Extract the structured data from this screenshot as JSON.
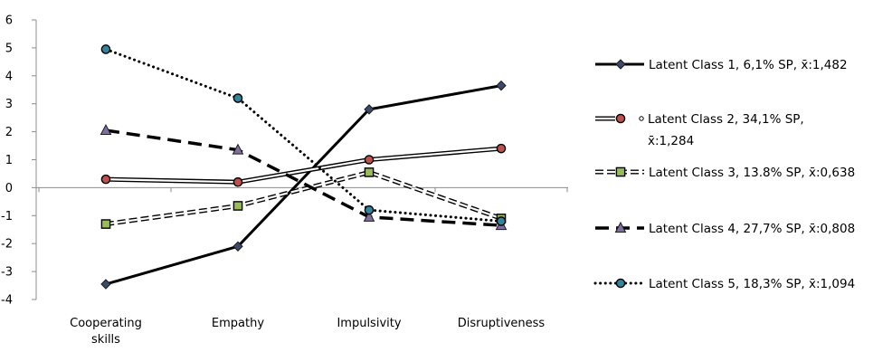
{
  "chart_data": {
    "type": "line",
    "title": "",
    "xlabel": "",
    "ylabel": "",
    "categories": [
      "Cooperating skills",
      "Empathy",
      "Impulsivity",
      "Disruptiveness"
    ],
    "category_lines": [
      [
        "Cooperating",
        "skills"
      ],
      [
        "Empathy"
      ],
      [
        "Impulsivity"
      ],
      [
        "Disruptiveness"
      ]
    ],
    "ylim": [
      -4,
      6
    ],
    "yticks": [
      -4,
      -3,
      -2,
      -1,
      0,
      1,
      2,
      3,
      4,
      5,
      6
    ],
    "grid": false,
    "legend_position": "right",
    "series": [
      {
        "name": "Latent Class 1, 6,1% SP, x̄:1,482",
        "name_lines": [
          "Latent Class 1, 6,1% SP, x̄:1,482"
        ],
        "values": [
          -3.45,
          -2.1,
          2.8,
          3.65
        ],
        "line_style": "solid",
        "marker": "diamond",
        "color": "#000000",
        "marker_color": "#3b4a6b"
      },
      {
        "name": "Latent Class 2, 34,1% SP, x̄:1,284",
        "name_lines": [
          "Latent Class 2, 34,1% SP,",
          "x̄:1,284"
        ],
        "values": [
          0.3,
          0.2,
          1.0,
          1.4
        ],
        "line_style": "double",
        "marker": "circle",
        "color": "#000000",
        "marker_color": "#c0504d"
      },
      {
        "name": "Latent Class 3, 13.8% SP, x̄:0,638",
        "name_lines": [
          "Latent Class 3, 13.8% SP, x̄:0,638"
        ],
        "values": [
          -1.3,
          -0.65,
          0.55,
          -1.1
        ],
        "line_style": "dashed-hollow",
        "marker": "square",
        "color": "#000000",
        "marker_color": "#9bbb59"
      },
      {
        "name": "Latent Class 4, 27,7% SP, x̄:0,808",
        "name_lines": [
          "Latent Class 4, 27,7% SP, x̄:0,808"
        ],
        "values": [
          2.05,
          1.35,
          -1.05,
          -1.35
        ],
        "line_style": "long-dash",
        "marker": "triangle",
        "color": "#000000",
        "marker_color": "#7f6fa0"
      },
      {
        "name": "Latent Class 5, 18,3% SP, x̄:1,094",
        "name_lines": [
          "Latent Class 5, 18,3% SP, x̄:1,094"
        ],
        "values": [
          4.95,
          3.2,
          -0.8,
          -1.2
        ],
        "line_style": "dotted",
        "marker": "circle",
        "color": "#000000",
        "marker_color": "#31859c"
      }
    ]
  }
}
